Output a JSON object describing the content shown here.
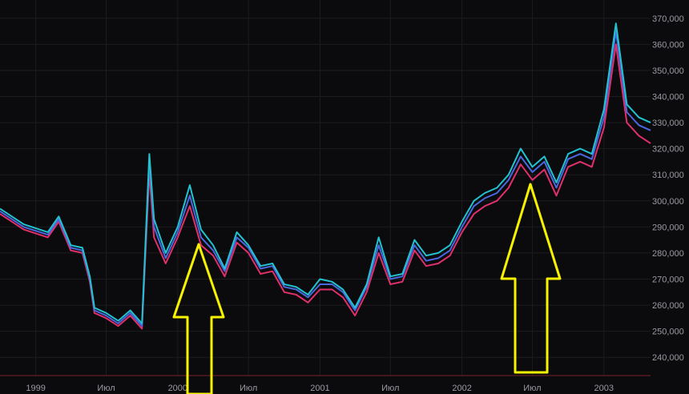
{
  "colors": {
    "background": "#0b0b0d",
    "grid": "#1c1c20",
    "tick_text": "#9a9aa2",
    "baseline": "#7a2230",
    "series_high": "#22c3d0",
    "series_mid": "#4a68e0",
    "series_low": "#e0306a",
    "arrow_stroke": "#f7f200"
  },
  "annotations": [
    {
      "name": "up-arrow-left",
      "icon": "yellow-outline-up-arrow",
      "points_to": "2000-03"
    },
    {
      "name": "up-arrow-right",
      "icon": "yellow-outline-up-arrow",
      "points_to": "2002-07"
    }
  ],
  "chart_data": {
    "type": "line",
    "title": "",
    "xlabel": "",
    "ylabel": "",
    "grid": true,
    "legend": "none",
    "x_tick_labels": [
      "1999",
      "Июл",
      "2000",
      "Июл",
      "2001",
      "Июл",
      "2002",
      "Июл",
      "2003"
    ],
    "x_tick_dates": [
      "1999-01",
      "1999-07",
      "2000-01",
      "2000-07",
      "2001-01",
      "2001-07",
      "2002-01",
      "2002-07",
      "2003-01"
    ],
    "y_tick_labels": [
      "240,000",
      "250,000",
      "260,000",
      "270,000",
      "280,000",
      "290,000",
      "300,000",
      "310,000",
      "320,000",
      "330,000",
      "340,000",
      "350,000",
      "360,000",
      "370,000"
    ],
    "ylim": [
      233000,
      377000
    ],
    "x_range": [
      "1998-10",
      "2003-05"
    ],
    "x": [
      "1998-10",
      "1998-12",
      "1999-02",
      "1999-03",
      "1999-04",
      "1999-05",
      "1999-05-20",
      "1999-06",
      "1999-07",
      "1999-08",
      "1999-09",
      "1999-10",
      "1999-10-20",
      "1999-11",
      "1999-12",
      "2000-01",
      "2000-02",
      "2000-03",
      "2000-04",
      "2000-05",
      "2000-06",
      "2000-07",
      "2000-08",
      "2000-09",
      "2000-10",
      "2000-11",
      "2000-12",
      "2001-01",
      "2001-02",
      "2001-03",
      "2001-04",
      "2001-05",
      "2001-06",
      "2001-07",
      "2001-08",
      "2001-09",
      "2001-10",
      "2001-11",
      "2001-12",
      "2002-01",
      "2002-02",
      "2002-03",
      "2002-04",
      "2002-05",
      "2002-06",
      "2002-07",
      "2002-08",
      "2002-09",
      "2002-10",
      "2002-11",
      "2002-12",
      "2003-01",
      "2003-02",
      "2003-03",
      "2003-04",
      "2003-05"
    ],
    "series": [
      {
        "values": [
          297000,
          291000,
          288000,
          294000,
          283000,
          282000,
          271000,
          259000,
          257000,
          254000,
          258000,
          253000,
          318000,
          293000,
          280000,
          290000,
          306000,
          289000,
          283000,
          274000,
          288000,
          283000,
          275000,
          276000,
          268000,
          267000,
          264000,
          270000,
          269000,
          266000,
          259000,
          268000,
          286000,
          271000,
          272000,
          285000,
          279000,
          280000,
          283000,
          292000,
          300000,
          303000,
          305000,
          310000,
          320000,
          313000,
          317000,
          307000,
          318000,
          320000,
          318000,
          335000,
          368000,
          337000,
          332000,
          330000
        ]
      },
      {
        "values": [
          296000,
          290000,
          287000,
          293000,
          282000,
          281000,
          270000,
          258000,
          256000,
          253000,
          257000,
          252000,
          315000,
          290000,
          278000,
          288000,
          302000,
          286000,
          281000,
          273000,
          286000,
          282000,
          274000,
          275000,
          267000,
          266000,
          263000,
          268000,
          268000,
          265000,
          258000,
          267000,
          283000,
          270000,
          271000,
          283000,
          277000,
          278000,
          281000,
          290000,
          298000,
          301000,
          303000,
          308000,
          317000,
          311000,
          315000,
          305000,
          316000,
          318000,
          316000,
          332000,
          365000,
          334000,
          329000,
          327000
        ]
      },
      {
        "values": [
          295000,
          289000,
          286000,
          292000,
          281000,
          280000,
          269000,
          257000,
          255000,
          252000,
          256000,
          251000,
          311000,
          286000,
          276000,
          286000,
          298000,
          283000,
          279000,
          271000,
          284000,
          280000,
          272000,
          273000,
          265000,
          264000,
          261000,
          266000,
          266000,
          263000,
          256000,
          265000,
          280000,
          268000,
          269000,
          281000,
          275000,
          276000,
          279000,
          288000,
          295000,
          298000,
          300000,
          305000,
          314000,
          308000,
          312000,
          302000,
          313000,
          315000,
          313000,
          328000,
          360000,
          330000,
          325000,
          322000
        ]
      }
    ]
  }
}
